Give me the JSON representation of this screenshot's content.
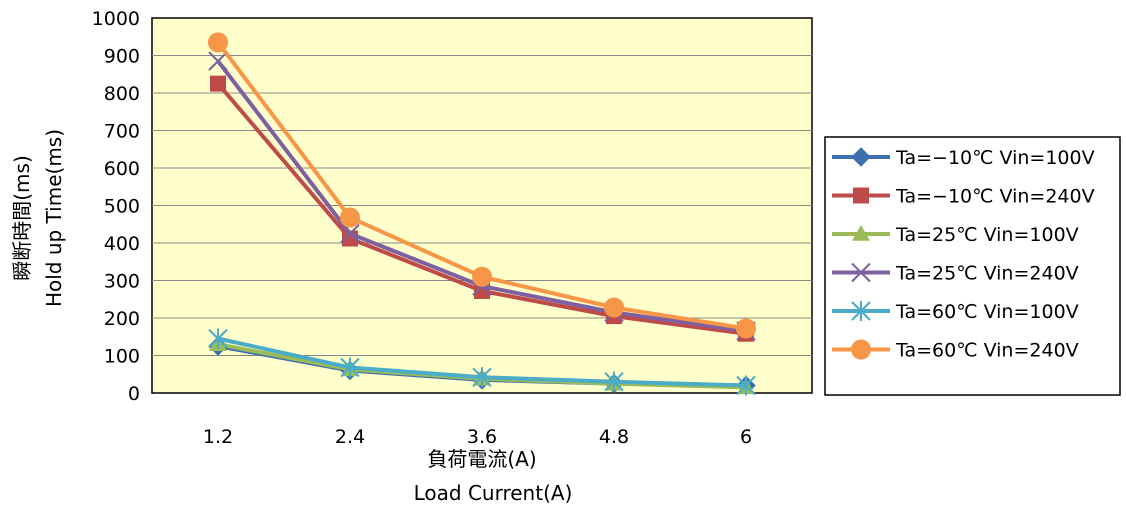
{
  "chart_data": {
    "type": "line",
    "categories": [
      "1.2",
      "2.4",
      "3.6",
      "4.8",
      "6"
    ],
    "xlabel": [
      "負荷電流(A)",
      "Load Current(A)"
    ],
    "ylabel": [
      "瞬断時間(ms)",
      "Hold up Time(ms)"
    ],
    "ylim": [
      0,
      1000
    ],
    "yticks": [
      "0",
      "100",
      "200",
      "300",
      "400",
      "500",
      "600",
      "700",
      "800",
      "900",
      "1000"
    ],
    "grid": true,
    "legend": "right",
    "plot_background": "#ffffcc",
    "series": [
      {
        "name": "Ta=−10℃ Vin=100V",
        "color": "#3c6fb0",
        "marker": "diamond",
        "values": [
          125,
          60,
          35,
          25,
          20
        ]
      },
      {
        "name": "Ta=−10℃ Vin=240V",
        "color": "#be4b48",
        "marker": "square",
        "values": [
          825,
          412,
          272,
          205,
          158
        ]
      },
      {
        "name": "Ta=25℃ Vin=100V",
        "color": "#9bbb59",
        "marker": "triangle",
        "values": [
          130,
          63,
          38,
          25,
          15
        ]
      },
      {
        "name": "Ta=25℃ Vin=240V",
        "color": "#7e5fa0",
        "marker": "x",
        "values": [
          885,
          425,
          285,
          215,
          165
        ]
      },
      {
        "name": "Ta=60℃ Vin=100V",
        "color": "#4aacc6",
        "marker": "star",
        "values": [
          145,
          68,
          42,
          30,
          20
        ]
      },
      {
        "name": "Ta=60℃ Vin=240V",
        "color": "#f79646",
        "marker": "circle",
        "values": [
          935,
          468,
          310,
          228,
          172
        ]
      }
    ]
  }
}
